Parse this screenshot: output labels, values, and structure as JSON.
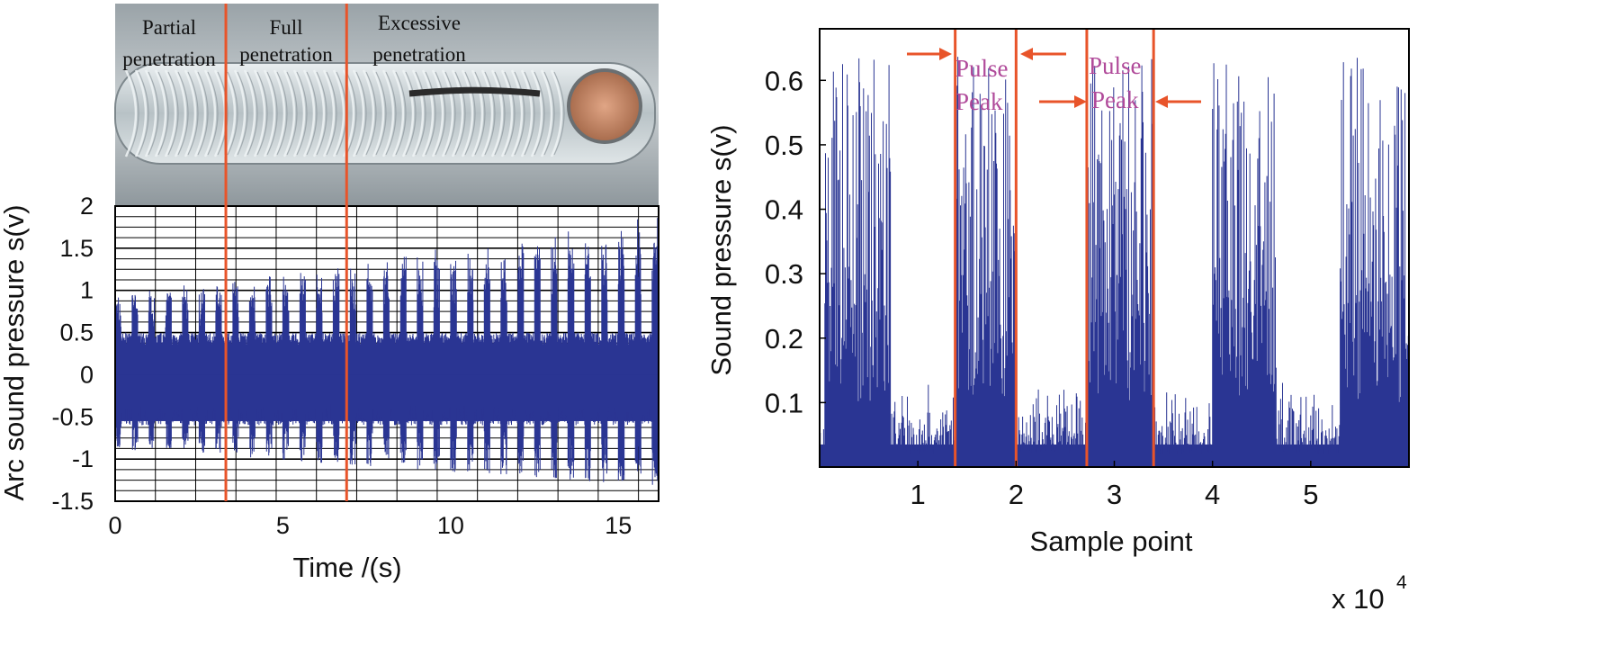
{
  "colors": {
    "signal": "#2a3593",
    "marker": "#e8542a",
    "pulse_text": "#b04a9a"
  },
  "photo": {
    "labels": [
      {
        "line1": "Partial",
        "line2": "penetration"
      },
      {
        "line1": "Full",
        "line2": "penetration"
      },
      {
        "line1": "Excessive",
        "line2": "penetration"
      }
    ]
  },
  "chart_data": [
    {
      "type": "line",
      "panel": "left",
      "xlabel": "Time /(s)",
      "ylabel": "Arc sound pressure s(v)",
      "xlim": [
        0,
        16.2
      ],
      "ylim": [
        -1.5,
        2
      ],
      "x_ticks": [
        0,
        5,
        10,
        15
      ],
      "x_tick_labels": [
        "0",
        "5",
        "10",
        "15"
      ],
      "y_ticks": [
        -1.5,
        -1,
        -0.5,
        0,
        0.5,
        1,
        1.5,
        2
      ],
      "y_tick_labels": [
        "-1.5",
        "-1",
        "-0.5",
        "0",
        "0.5",
        "1",
        "1.5",
        "2"
      ],
      "grid": true,
      "vertical_markers_x": [
        3.3,
        6.9
      ],
      "regions": [
        "Partial penetration",
        "Full penetration",
        "Excessive penetration"
      ],
      "series": [
        {
          "name": "arc sound pressure",
          "pulse_period_s": 0.5,
          "peak_min": 0.6,
          "peak_max": 1.9,
          "trough_min": -1.5,
          "base_amplitude": 0.35
        }
      ]
    },
    {
      "type": "line",
      "panel": "right",
      "xlabel": "Sample point",
      "ylabel": "Sound pressure s(v)",
      "x_scale_label": "x 10",
      "x_scale_exp": "4",
      "xlim": [
        0,
        6
      ],
      "ylim": [
        0,
        0.68
      ],
      "x_ticks": [
        1,
        2,
        3,
        4,
        5
      ],
      "x_tick_labels": [
        "1",
        "2",
        "3",
        "4",
        "5"
      ],
      "y_ticks": [
        0.1,
        0.2,
        0.3,
        0.4,
        0.5,
        0.6
      ],
      "y_tick_labels": [
        "0.1",
        "0.2",
        "0.3",
        "0.4",
        "0.5",
        "0.6"
      ],
      "grid": false,
      "vertical_markers_x": [
        1.38,
        2.0,
        2.72,
        3.4
      ],
      "pulse_intervals": [
        [
          0.05,
          0.72
        ],
        [
          1.38,
          2.0
        ],
        [
          2.72,
          3.4
        ],
        [
          4.0,
          4.65
        ],
        [
          5.3,
          6.0
        ]
      ],
      "pulse_peak_max": 0.66,
      "baseline_max": 0.12,
      "annotations": [
        {
          "text_line1": "Pulse",
          "text_line2": "Peak"
        },
        {
          "text_line1": "Pulse",
          "text_line2": "Peak"
        }
      ]
    }
  ]
}
